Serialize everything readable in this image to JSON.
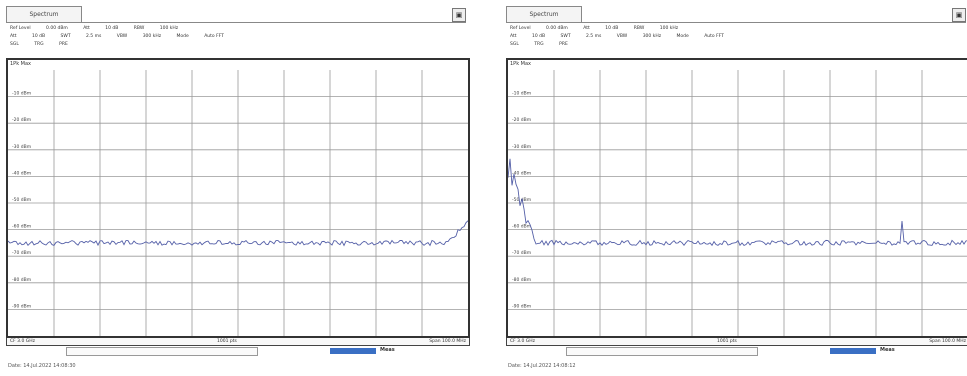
{
  "panels": [
    {
      "tab_label": "Spectrum",
      "settings": {
        "row1": [
          "Ref Level",
          "0.00 dBm",
          "Att",
          "10 dB",
          "RBW",
          "100 kHz"
        ],
        "row2": [
          "Att",
          "10 dB",
          "SWT",
          "2.5 ms",
          "VBW",
          "300 kHz",
          "Mode",
          "Auto FFT"
        ],
        "row3": [
          "SGL",
          "TRG",
          "PRE"
        ]
      },
      "trace_label": "1Pk Max",
      "y_ticks": [
        "-10 dBm",
        "-20 dBm",
        "-30 dBm",
        "-40 dBm",
        "-50 dBm",
        "-60 dBm",
        "-70 dBm",
        "-80 dBm",
        "-90 dBm"
      ],
      "footer": {
        "left": "CF 3.0 GHz",
        "center": "1001 pts",
        "right": "Span 100.0 MHz"
      },
      "status": "Meas",
      "date": "Date: 14.Jul.2022 14:08:30"
    },
    {
      "tab_label": "Spectrum",
      "settings": {
        "row1": [
          "Ref Level",
          "0.00 dBm",
          "Att",
          "10 dB",
          "RBW",
          "100 kHz"
        ],
        "row2": [
          "Att",
          "10 dB",
          "SWT",
          "2.5 ms",
          "VBW",
          "300 kHz",
          "Mode",
          "Auto FFT"
        ],
        "row3": [
          "SGL",
          "TRG",
          "PRE"
        ]
      },
      "trace_label": "1Pk Max",
      "y_ticks": [
        "-10 dBm",
        "-20 dBm",
        "-30 dBm",
        "-40 dBm",
        "-50 dBm",
        "-60 dBm",
        "-70 dBm",
        "-80 dBm",
        "-90 dBm"
      ],
      "footer": {
        "left": "CF 3.0 GHz",
        "center": "1001 pts",
        "right": "Span 100.0 MHz"
      },
      "status": "Meas",
      "date": "Date: 14.Jul.2022 14:08:12"
    }
  ],
  "colors": {
    "trace": "#5560a8",
    "grid": "#9a9a9a",
    "progress": "#3a6fc4"
  }
}
